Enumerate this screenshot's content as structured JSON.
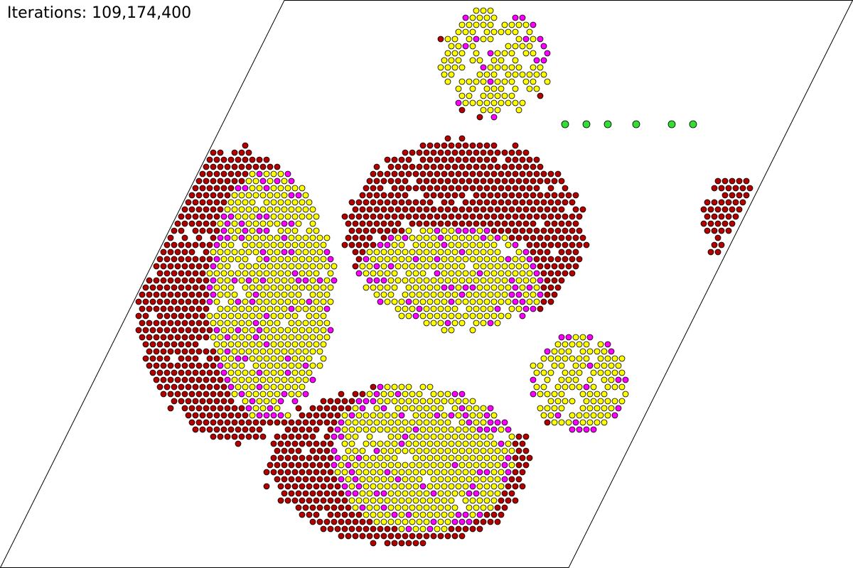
{
  "status": {
    "iterations": "Iterations: 109,174,400"
  }
}
